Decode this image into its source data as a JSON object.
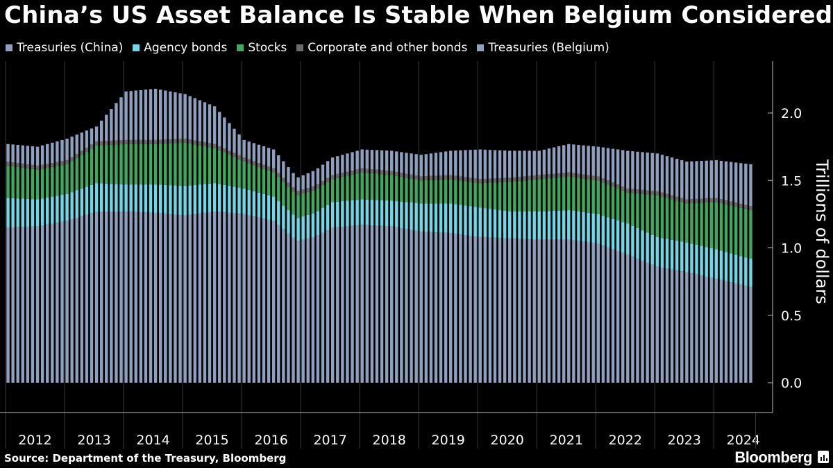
{
  "title": "China’s US Asset Balance Is Stable When Belgium Considered",
  "source": "Source: Department of the Treasury, Bloomberg",
  "brand": "Bloomberg",
  "colors": {
    "background": "#000000",
    "treasuries_china": "#8fa0bf",
    "agency_bonds": "#6dd9e8",
    "stocks": "#3fa95f",
    "corporate_other": "#6b6b6b",
    "treasuries_belgium": "#8fa0bf",
    "grid": "#3a3a3a"
  },
  "chart_data": {
    "type": "bar",
    "stacked": true,
    "ylabel": "Trillions of dollars",
    "ylim": [
      0,
      2.3
    ],
    "yticks": [
      "0.0",
      "0.5",
      "1.0",
      "1.5",
      "2.0"
    ],
    "y_tick_values": [
      0,
      0.5,
      1.0,
      1.5,
      2.0
    ],
    "year_labels": [
      "2012",
      "2013",
      "2014",
      "2015",
      "2016",
      "2017",
      "2018",
      "2019",
      "2020",
      "2021",
      "2022",
      "2023",
      "2024"
    ],
    "frequency": "monthly",
    "start": "2012-01",
    "end": "2024-07",
    "legend_position": "top-left",
    "grid": "vertical-year-lines",
    "series": [
      {
        "name": "Treasuries (China)",
        "color_key": "treasuries_china",
        "anchors": [
          [
            2012.0,
            1.15
          ],
          [
            2012.5,
            1.16
          ],
          [
            2013.0,
            1.2
          ],
          [
            2013.5,
            1.27
          ],
          [
            2014.0,
            1.27
          ],
          [
            2014.5,
            1.26
          ],
          [
            2015.0,
            1.24
          ],
          [
            2015.5,
            1.27
          ],
          [
            2016.0,
            1.25
          ],
          [
            2016.5,
            1.2
          ],
          [
            2016.9,
            1.05
          ],
          [
            2017.2,
            1.08
          ],
          [
            2017.5,
            1.15
          ],
          [
            2018.0,
            1.17
          ],
          [
            2018.5,
            1.16
          ],
          [
            2019.0,
            1.12
          ],
          [
            2019.5,
            1.11
          ],
          [
            2020.0,
            1.08
          ],
          [
            2020.5,
            1.07
          ],
          [
            2021.0,
            1.06
          ],
          [
            2021.5,
            1.06
          ],
          [
            2022.0,
            1.03
          ],
          [
            2022.5,
            0.95
          ],
          [
            2023.0,
            0.86
          ],
          [
            2023.5,
            0.82
          ],
          [
            2024.0,
            0.77
          ],
          [
            2024.58,
            0.71
          ]
        ]
      },
      {
        "name": "Agency bonds",
        "color_key": "agency_bonds",
        "anchors": [
          [
            2012.0,
            0.22
          ],
          [
            2012.5,
            0.2
          ],
          [
            2013.0,
            0.2
          ],
          [
            2013.5,
            0.21
          ],
          [
            2014.0,
            0.2
          ],
          [
            2014.5,
            0.21
          ],
          [
            2015.0,
            0.22
          ],
          [
            2015.5,
            0.21
          ],
          [
            2016.0,
            0.19
          ],
          [
            2016.5,
            0.18
          ],
          [
            2016.9,
            0.17
          ],
          [
            2017.5,
            0.19
          ],
          [
            2018.0,
            0.19
          ],
          [
            2018.5,
            0.19
          ],
          [
            2019.0,
            0.21
          ],
          [
            2019.5,
            0.22
          ],
          [
            2020.0,
            0.22
          ],
          [
            2020.5,
            0.2
          ],
          [
            2021.0,
            0.21
          ],
          [
            2021.5,
            0.22
          ],
          [
            2022.0,
            0.22
          ],
          [
            2022.5,
            0.23
          ],
          [
            2023.0,
            0.22
          ],
          [
            2023.5,
            0.22
          ],
          [
            2024.0,
            0.22
          ],
          [
            2024.58,
            0.21
          ]
        ]
      },
      {
        "name": "Stocks",
        "color_key": "stocks",
        "anchors": [
          [
            2012.0,
            0.24
          ],
          [
            2012.5,
            0.22
          ],
          [
            2013.0,
            0.22
          ],
          [
            2013.5,
            0.28
          ],
          [
            2014.0,
            0.3
          ],
          [
            2014.5,
            0.3
          ],
          [
            2015.0,
            0.32
          ],
          [
            2015.5,
            0.26
          ],
          [
            2016.0,
            0.2
          ],
          [
            2016.5,
            0.18
          ],
          [
            2016.9,
            0.17
          ],
          [
            2017.5,
            0.17
          ],
          [
            2018.0,
            0.2
          ],
          [
            2018.5,
            0.19
          ],
          [
            2019.0,
            0.17
          ],
          [
            2019.5,
            0.18
          ],
          [
            2020.0,
            0.18
          ],
          [
            2020.5,
            0.22
          ],
          [
            2021.0,
            0.24
          ],
          [
            2021.5,
            0.25
          ],
          [
            2022.0,
            0.25
          ],
          [
            2022.5,
            0.23
          ],
          [
            2023.0,
            0.31
          ],
          [
            2023.5,
            0.29
          ],
          [
            2024.0,
            0.35
          ],
          [
            2024.58,
            0.36
          ]
        ]
      },
      {
        "name": "Corporate and other bonds",
        "color_key": "corporate_other",
        "anchors": [
          [
            2012.0,
            0.03
          ],
          [
            2013.0,
            0.03
          ],
          [
            2014.0,
            0.03
          ],
          [
            2015.0,
            0.03
          ],
          [
            2016.0,
            0.03
          ],
          [
            2017.0,
            0.03
          ],
          [
            2018.0,
            0.03
          ],
          [
            2019.0,
            0.03
          ],
          [
            2020.0,
            0.03
          ],
          [
            2021.0,
            0.03
          ],
          [
            2022.0,
            0.03
          ],
          [
            2023.0,
            0.03
          ],
          [
            2024.0,
            0.03
          ],
          [
            2024.58,
            0.03
          ]
        ]
      },
      {
        "name": "Treasuries (Belgium)",
        "color_key": "treasuries_belgium",
        "anchors": [
          [
            2012.0,
            0.13
          ],
          [
            2012.5,
            0.14
          ],
          [
            2013.0,
            0.16
          ],
          [
            2013.5,
            0.11
          ],
          [
            2014.0,
            0.36
          ],
          [
            2014.5,
            0.38
          ],
          [
            2015.0,
            0.33
          ],
          [
            2015.5,
            0.28
          ],
          [
            2016.0,
            0.13
          ],
          [
            2016.5,
            0.14
          ],
          [
            2016.9,
            0.1
          ],
          [
            2017.5,
            0.13
          ],
          [
            2018.0,
            0.14
          ],
          [
            2018.5,
            0.15
          ],
          [
            2019.0,
            0.16
          ],
          [
            2019.5,
            0.18
          ],
          [
            2020.0,
            0.22
          ],
          [
            2020.5,
            0.2
          ],
          [
            2021.0,
            0.18
          ],
          [
            2021.5,
            0.21
          ],
          [
            2022.0,
            0.22
          ],
          [
            2022.5,
            0.28
          ],
          [
            2023.0,
            0.28
          ],
          [
            2023.5,
            0.28
          ],
          [
            2024.0,
            0.28
          ],
          [
            2024.58,
            0.31
          ]
        ]
      }
    ]
  }
}
